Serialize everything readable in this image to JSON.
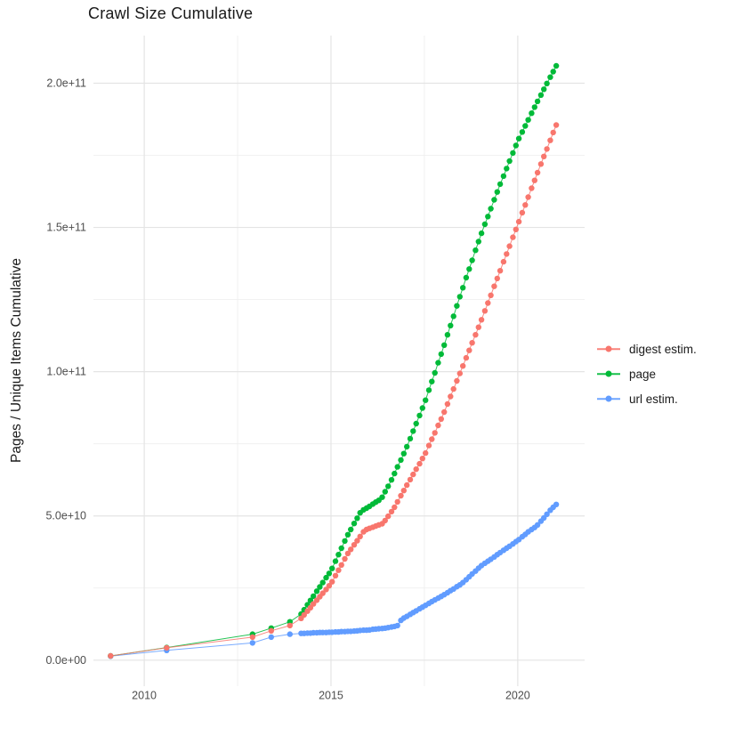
{
  "title": "Crawl Size Cumulative",
  "chart_data": {
    "type": "scatter",
    "title": "Crawl Size Cumulative",
    "xlabel": "",
    "ylabel": "Pages / Unique Items Cumulative",
    "values_unit": "1e9 (billions of pages / unique items)",
    "grid": true,
    "legend_position": "right",
    "x_axis": {
      "ticks": [
        {
          "v": 2010,
          "label": "2010"
        },
        {
          "v": 2015,
          "label": "2015"
        },
        {
          "v": 2020,
          "label": "2020"
        }
      ],
      "minor": [
        2012.5,
        2017.5
      ],
      "range": [
        2008.64,
        2021.79
      ]
    },
    "y_axis": {
      "ticks": [
        {
          "v": 0,
          "label": "0.0e+00"
        },
        {
          "v": 50,
          "label": "5.0e+10"
        },
        {
          "v": 100,
          "label": "1.0e+11"
        },
        {
          "v": 150,
          "label": "1.5e+11"
        },
        {
          "v": 200,
          "label": "2.0e+11"
        }
      ],
      "minor": [
        25,
        75,
        125,
        175
      ],
      "range": [
        -9,
        216.5
      ]
    },
    "series": [
      {
        "name": "digest estim.",
        "color": "#F8766D",
        "points": [
          [
            2009.1,
            1.5
          ],
          [
            2010.6,
            4.3
          ],
          [
            2012.9,
            8
          ],
          [
            2013.4,
            10.2
          ],
          [
            2013.9,
            12
          ],
          [
            2014.2,
            14.5
          ],
          [
            2014.28,
            15.7
          ],
          [
            2014.37,
            17
          ],
          [
            2014.45,
            18.2
          ],
          [
            2014.53,
            19.5
          ],
          [
            2014.62,
            20.8
          ],
          [
            2014.7,
            22
          ],
          [
            2014.78,
            23.2
          ],
          [
            2014.87,
            24.5
          ],
          [
            2014.95,
            25.8
          ],
          [
            2015.03,
            27.2
          ],
          [
            2015.12,
            29.3
          ],
          [
            2015.2,
            31.2
          ],
          [
            2015.28,
            33
          ],
          [
            2015.37,
            35.1
          ],
          [
            2015.45,
            37
          ],
          [
            2015.53,
            38.4
          ],
          [
            2015.62,
            40
          ],
          [
            2015.7,
            41.4
          ],
          [
            2015.78,
            42.9
          ],
          [
            2015.87,
            44.5
          ],
          [
            2015.95,
            45.3
          ],
          [
            2016.03,
            45.7
          ],
          [
            2016.12,
            46.1
          ],
          [
            2016.2,
            46.5
          ],
          [
            2016.28,
            46.9
          ],
          [
            2016.37,
            47.3
          ],
          [
            2016.45,
            48.4
          ],
          [
            2016.53,
            49.9
          ],
          [
            2016.62,
            51.5
          ],
          [
            2016.7,
            53
          ],
          [
            2016.78,
            54.9
          ],
          [
            2016.87,
            57
          ],
          [
            2016.95,
            58.8
          ],
          [
            2017.03,
            60.7
          ],
          [
            2017.12,
            62.6
          ],
          [
            2017.2,
            64.4
          ],
          [
            2017.28,
            66.2
          ],
          [
            2017.37,
            68.1
          ],
          [
            2017.45,
            69.9
          ],
          [
            2017.53,
            71.8
          ],
          [
            2017.62,
            74.4
          ],
          [
            2017.7,
            76.6
          ],
          [
            2017.78,
            78.8
          ],
          [
            2017.87,
            81.4
          ],
          [
            2017.95,
            83.6
          ],
          [
            2018.03,
            86
          ],
          [
            2018.12,
            88.8
          ],
          [
            2018.2,
            91.4
          ],
          [
            2018.28,
            94
          ],
          [
            2018.37,
            96.8
          ],
          [
            2018.45,
            99.4
          ],
          [
            2018.53,
            102
          ],
          [
            2018.62,
            104.8
          ],
          [
            2018.7,
            107.4
          ],
          [
            2018.78,
            110
          ],
          [
            2018.87,
            112.8
          ],
          [
            2018.95,
            115.4
          ],
          [
            2019.03,
            118
          ],
          [
            2019.12,
            121.1
          ],
          [
            2019.2,
            123.8
          ],
          [
            2019.28,
            126.5
          ],
          [
            2019.37,
            129.6
          ],
          [
            2019.45,
            132.3
          ],
          [
            2019.53,
            135
          ],
          [
            2019.62,
            138.1
          ],
          [
            2019.7,
            140.8
          ],
          [
            2019.78,
            143.5
          ],
          [
            2019.87,
            146.6
          ],
          [
            2019.95,
            149.3
          ],
          [
            2020.03,
            152
          ],
          [
            2020.12,
            155.1
          ],
          [
            2020.2,
            157.8
          ],
          [
            2020.28,
            160.5
          ],
          [
            2020.37,
            163.6
          ],
          [
            2020.45,
            166.3
          ],
          [
            2020.53,
            169
          ],
          [
            2020.62,
            172
          ],
          [
            2020.7,
            174.6
          ],
          [
            2020.78,
            177.2
          ],
          [
            2020.87,
            180.2
          ],
          [
            2020.95,
            182.9
          ],
          [
            2021.03,
            185.5
          ]
        ]
      },
      {
        "name": "page",
        "color": "#00BA38",
        "points": [
          [
            2009.1,
            1.5
          ],
          [
            2010.6,
            4.4
          ],
          [
            2012.9,
            9
          ],
          [
            2013.4,
            11.1
          ],
          [
            2013.9,
            13.3
          ],
          [
            2014.2,
            16
          ],
          [
            2014.28,
            17.5
          ],
          [
            2014.37,
            19.2
          ],
          [
            2014.45,
            20.7
          ],
          [
            2014.53,
            22.2
          ],
          [
            2014.62,
            23.9
          ],
          [
            2014.7,
            25.4
          ],
          [
            2014.78,
            26.9
          ],
          [
            2014.87,
            28.6
          ],
          [
            2014.95,
            30.1
          ],
          [
            2015.03,
            31.8
          ],
          [
            2015.12,
            34.3
          ],
          [
            2015.2,
            36.6
          ],
          [
            2015.28,
            38.8
          ],
          [
            2015.37,
            41.3
          ],
          [
            2015.45,
            43.5
          ],
          [
            2015.53,
            45.3
          ],
          [
            2015.62,
            47.4
          ],
          [
            2015.7,
            49.2
          ],
          [
            2015.78,
            51.1
          ],
          [
            2015.87,
            52.1
          ],
          [
            2015.95,
            52.7
          ],
          [
            2016.03,
            53.3
          ],
          [
            2016.12,
            54.1
          ],
          [
            2016.2,
            54.8
          ],
          [
            2016.28,
            55.4
          ],
          [
            2016.37,
            56.5
          ],
          [
            2016.45,
            58.4
          ],
          [
            2016.53,
            60.3
          ],
          [
            2016.62,
            62.5
          ],
          [
            2016.7,
            64.7
          ],
          [
            2016.78,
            67
          ],
          [
            2016.87,
            69.4
          ],
          [
            2016.95,
            71.6
          ],
          [
            2017.03,
            74
          ],
          [
            2017.12,
            76.8
          ],
          [
            2017.2,
            79.4
          ],
          [
            2017.28,
            82
          ],
          [
            2017.37,
            84.8
          ],
          [
            2017.45,
            87.4
          ],
          [
            2017.53,
            90.1
          ],
          [
            2017.62,
            93.6
          ],
          [
            2017.7,
            96.6
          ],
          [
            2017.78,
            99.6
          ],
          [
            2017.87,
            103.1
          ],
          [
            2017.95,
            106.1
          ],
          [
            2018.03,
            109.2
          ],
          [
            2018.12,
            112.8
          ],
          [
            2018.2,
            116
          ],
          [
            2018.28,
            119.2
          ],
          [
            2018.37,
            122.8
          ],
          [
            2018.45,
            126
          ],
          [
            2018.53,
            129.1
          ],
          [
            2018.62,
            132.6
          ],
          [
            2018.7,
            135.6
          ],
          [
            2018.78,
            138.6
          ],
          [
            2018.87,
            142.1
          ],
          [
            2018.95,
            145.1
          ],
          [
            2019.03,
            148
          ],
          [
            2019.12,
            151.1
          ],
          [
            2019.2,
            153.8
          ],
          [
            2019.28,
            156.5
          ],
          [
            2019.37,
            159.6
          ],
          [
            2019.45,
            162.3
          ],
          [
            2019.53,
            165
          ],
          [
            2019.62,
            167.8
          ],
          [
            2019.7,
            170.4
          ],
          [
            2019.78,
            173
          ],
          [
            2019.87,
            175.8
          ],
          [
            2019.95,
            178.4
          ],
          [
            2020.03,
            180.8
          ],
          [
            2020.12,
            183.1
          ],
          [
            2020.2,
            185.2
          ],
          [
            2020.28,
            187.3
          ],
          [
            2020.37,
            189.6
          ],
          [
            2020.45,
            191.7
          ],
          [
            2020.53,
            193.7
          ],
          [
            2020.62,
            195.9
          ],
          [
            2020.7,
            197.9
          ],
          [
            2020.78,
            199.9
          ],
          [
            2020.87,
            202.1
          ],
          [
            2020.95,
            204
          ],
          [
            2021.03,
            206
          ]
        ]
      },
      {
        "name": "url estim.",
        "color": "#619CFF",
        "points": [
          [
            2009.1,
            1.4
          ],
          [
            2010.6,
            3.4
          ],
          [
            2012.9,
            6
          ],
          [
            2013.4,
            8
          ],
          [
            2013.9,
            9
          ],
          [
            2014.2,
            9.3
          ],
          [
            2014.28,
            9.3
          ],
          [
            2014.37,
            9.4
          ],
          [
            2014.45,
            9.4
          ],
          [
            2014.53,
            9.5
          ],
          [
            2014.62,
            9.5
          ],
          [
            2014.7,
            9.6
          ],
          [
            2014.78,
            9.6
          ],
          [
            2014.87,
            9.6
          ],
          [
            2014.95,
            9.7
          ],
          [
            2015.03,
            9.7
          ],
          [
            2015.12,
            9.8
          ],
          [
            2015.2,
            9.8
          ],
          [
            2015.28,
            9.9
          ],
          [
            2015.37,
            9.9
          ],
          [
            2015.45,
            10
          ],
          [
            2015.53,
            10
          ],
          [
            2015.62,
            10.1
          ],
          [
            2015.7,
            10.2
          ],
          [
            2015.78,
            10.3
          ],
          [
            2015.87,
            10.4
          ],
          [
            2015.95,
            10.4
          ],
          [
            2016.03,
            10.5
          ],
          [
            2016.12,
            10.7
          ],
          [
            2016.2,
            10.8
          ],
          [
            2016.28,
            10.9
          ],
          [
            2016.37,
            11
          ],
          [
            2016.45,
            11.1
          ],
          [
            2016.53,
            11.3
          ],
          [
            2016.62,
            11.5
          ],
          [
            2016.7,
            11.7
          ],
          [
            2016.78,
            12
          ],
          [
            2016.87,
            13.8
          ],
          [
            2016.95,
            14.6
          ],
          [
            2017.03,
            15.2
          ],
          [
            2017.12,
            15.9
          ],
          [
            2017.2,
            16.5
          ],
          [
            2017.28,
            17.1
          ],
          [
            2017.37,
            17.8
          ],
          [
            2017.45,
            18.4
          ],
          [
            2017.53,
            19
          ],
          [
            2017.62,
            19.7
          ],
          [
            2017.7,
            20.3
          ],
          [
            2017.78,
            20.9
          ],
          [
            2017.87,
            21.5
          ],
          [
            2017.95,
            22.1
          ],
          [
            2018.03,
            22.7
          ],
          [
            2018.12,
            23.4
          ],
          [
            2018.2,
            24.1
          ],
          [
            2018.28,
            24.7
          ],
          [
            2018.37,
            25.5
          ],
          [
            2018.45,
            26.1
          ],
          [
            2018.53,
            26.9
          ],
          [
            2018.62,
            27.9
          ],
          [
            2018.7,
            28.9
          ],
          [
            2018.78,
            29.9
          ],
          [
            2018.87,
            30.9
          ],
          [
            2018.95,
            31.9
          ],
          [
            2019.03,
            32.8
          ],
          [
            2019.12,
            33.6
          ],
          [
            2019.2,
            34.3
          ],
          [
            2019.28,
            35
          ],
          [
            2019.37,
            35.8
          ],
          [
            2019.45,
            36.6
          ],
          [
            2019.53,
            37.3
          ],
          [
            2019.62,
            38.1
          ],
          [
            2019.7,
            38.8
          ],
          [
            2019.78,
            39.5
          ],
          [
            2019.87,
            40.3
          ],
          [
            2019.95,
            41.1
          ],
          [
            2020.03,
            41.8
          ],
          [
            2020.12,
            42.8
          ],
          [
            2020.2,
            43.6
          ],
          [
            2020.28,
            44.5
          ],
          [
            2020.37,
            45.3
          ],
          [
            2020.45,
            46
          ],
          [
            2020.53,
            46.9
          ],
          [
            2020.62,
            48.2
          ],
          [
            2020.7,
            49.3
          ],
          [
            2020.78,
            50.6
          ],
          [
            2020.87,
            52
          ],
          [
            2020.95,
            53
          ],
          [
            2021.03,
            54
          ]
        ]
      }
    ],
    "style": {
      "grid_major_color": "#E4E4E4",
      "grid_minor_color": "#EDEDED",
      "axis_text_color": "#4D4D4D",
      "point_radius": 3.2,
      "line_width": 1
    }
  }
}
